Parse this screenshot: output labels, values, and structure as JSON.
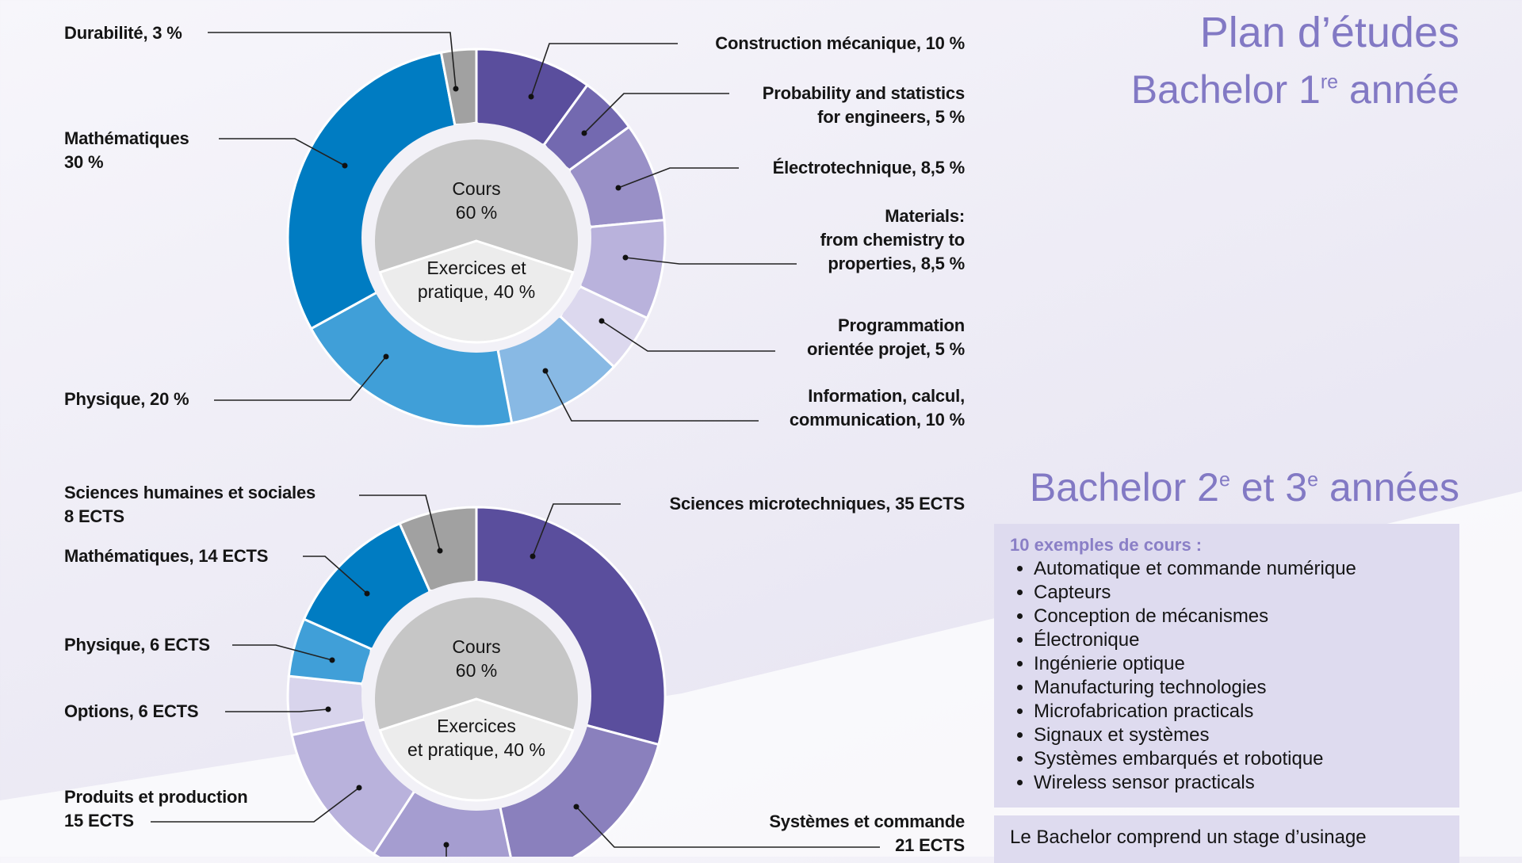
{
  "titles": {
    "main": "Plan d’études",
    "year1": {
      "text": "Bachelor 1",
      "sup": "re",
      "after": " année"
    },
    "year23": {
      "text": "Bachelor 2",
      "sup1": "e",
      "mid": " et 3",
      "sup2": "e",
      "after": " années"
    }
  },
  "courses_box": {
    "heading": "10 exemples de cours :",
    "items": [
      "Automatique et commande numérique",
      "Capteurs",
      "Conception de mécanismes",
      "Électronique",
      "Ingénierie optique",
      "Manufacturing technologies",
      "Microfabrication practicals",
      "Signaux et systèmes",
      "Systèmes embarqués et robotique",
      "Wireless sensor practicals"
    ]
  },
  "note_box": {
    "text": "Le Bachelor comprend un stage d’usinage"
  },
  "chart_data": [
    {
      "type": "pie",
      "variant": "donut",
      "unit": "%",
      "slices": [
        {
          "label": "Construction mécanique, 10 %",
          "value": 10,
          "color": "#5a4e9d"
        },
        {
          "label": "Probability and statistics\nfor engineers, 5 %",
          "value": 5,
          "color": "#7369b0"
        },
        {
          "label": "Électrotechnique, 8,5 %",
          "value": 8.5,
          "color": "#9990c7"
        },
        {
          "label": "Materials:\nfrom chemistry to\nproperties, 8,5 %",
          "value": 8.5,
          "color": "#b9b2dc"
        },
        {
          "label": "Programmation\norientée projet, 5 %",
          "value": 5,
          "color": "#dcd8ee"
        },
        {
          "label": "Information, calcul,\ncommunication, 10 %",
          "value": 10,
          "color": "#88b9e4"
        },
        {
          "label": "Physique, 20 %",
          "value": 20,
          "color": "#409fd8"
        },
        {
          "label": "Mathématiques\n30 %",
          "value": 30,
          "color": "#007cc2"
        },
        {
          "label": "Durabilité, 3 %",
          "value": 3,
          "color": "#a1a1a1"
        }
      ],
      "inner": [
        {
          "label": "Cours\n60 %",
          "value": 60,
          "color": "#c6c6c6"
        },
        {
          "label": "Exercices et\npratique, 40 %",
          "value": 40,
          "color": "#ececec"
        }
      ]
    },
    {
      "type": "pie",
      "variant": "donut",
      "unit": "ECTS",
      "slices": [
        {
          "label": "Sciences microtechniques, 35 ECTS",
          "value": 35,
          "color": "#5a4e9d"
        },
        {
          "label": "Systèmes et commande\n21 ECTS",
          "value": 21,
          "color": "#8a80bd"
        },
        {
          "label": "",
          "value": 15,
          "color": "#a59dd0"
        },
        {
          "label": "Produits et production\n15 ECTS",
          "value": 15,
          "color": "#b9b2dc"
        },
        {
          "label": "Options, 6 ECTS",
          "value": 6,
          "color": "#d8d4ec"
        },
        {
          "label": "Physique, 6 ECTS",
          "value": 6,
          "color": "#409fd8"
        },
        {
          "label": "Mathématiques, 14 ECTS",
          "value": 14,
          "color": "#007cc2"
        },
        {
          "label": "Sciences humaines et sociales\n8 ECTS",
          "value": 8,
          "color": "#a1a1a1"
        }
      ],
      "inner": [
        {
          "label": "Cours\n60 %",
          "value": 60,
          "color": "#c6c6c6"
        },
        {
          "label": "Exercices\net pratique, 40 %",
          "value": 40,
          "color": "#ececec"
        }
      ]
    }
  ]
}
